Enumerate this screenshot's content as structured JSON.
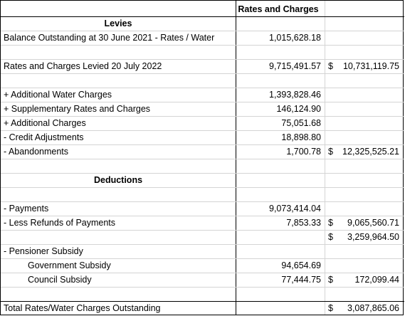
{
  "header": {
    "col2": "Rates and Charges"
  },
  "rows": {
    "levies_title": "Levies",
    "balance_label": "Balance Outstanding at 30 June 2021 - Rates / Water",
    "balance_value": "1,015,628.18",
    "levied_label": "Rates and Charges Levied 20 July 2022",
    "levied_value": "9,715,491.57",
    "levied_total_dollar": "$",
    "levied_total": "10,731,119.75",
    "water_label": "+ Additional Water Charges",
    "water_value": "1,393,828.46",
    "supp_label": "+ Supplementary Rates and Charges",
    "supp_value": "146,124.90",
    "addl_label": "+ Additional Charges",
    "addl_value": "75,051.68",
    "credit_label": "- Credit Adjustments",
    "credit_value": "18,898.80",
    "aband_label": "- Abandonments",
    "aband_value": "1,700.78",
    "aband_total_dollar": "$",
    "aband_total": "12,325,525.21",
    "deductions_title": "Deductions",
    "payments_label": "- Payments",
    "payments_value": "9,073,414.04",
    "refunds_label": "- Less Refunds of Payments",
    "refunds_value": "7,853.33",
    "refunds_total_dollar": "$",
    "refunds_total": "9,065,560.71",
    "subtotal_dollar": "$",
    "subtotal": "3,259,964.50",
    "pensioner_label": "- Pensioner Subsidy",
    "govt_label": "Government Subsidy",
    "govt_value": "94,654.69",
    "council_label": "Council Subsidy",
    "council_value": "77,444.75",
    "council_total_dollar": "$",
    "council_total": "172,099.44",
    "final_label": "Total Rates/Water Charges Outstanding",
    "final_dollar": "$",
    "final_total": "3,087,865.06"
  }
}
